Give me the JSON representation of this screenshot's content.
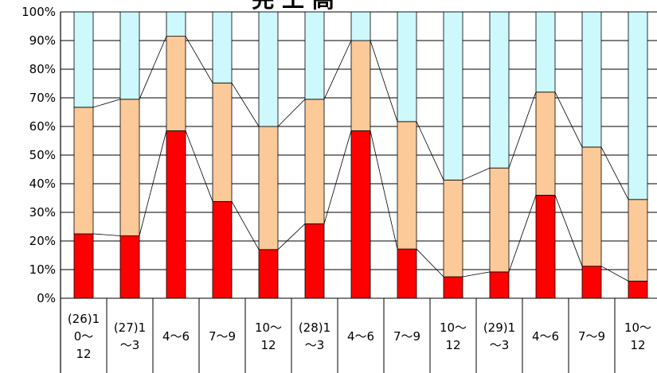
{
  "chart_data": {
    "type": "bar",
    "stacked": true,
    "normalized": true,
    "title": "完 工 高",
    "categories": [
      [
        "(26)1",
        "0～",
        "12"
      ],
      [
        "(27)1",
        "～3"
      ],
      [
        "4～6"
      ],
      [
        "7～9"
      ],
      [
        "10～",
        "12"
      ],
      [
        "(28)1",
        "～3"
      ],
      [
        "4～6"
      ],
      [
        "7～9"
      ],
      [
        "10～",
        "12"
      ],
      [
        "(29)1",
        "～3"
      ],
      [
        "4～6"
      ],
      [
        "7～9"
      ],
      [
        "10～",
        "12"
      ]
    ],
    "series": [
      {
        "color": "#ff0000",
        "values": [
          22.5,
          21.8,
          58.5,
          33.8,
          17.0,
          26.0,
          58.5,
          17.2,
          7.5,
          9.2,
          36.0,
          11.2,
          6.0
        ]
      },
      {
        "color": "#fcc998",
        "values": [
          44.2,
          47.7,
          33.0,
          41.4,
          43.0,
          43.5,
          31.5,
          44.5,
          33.8,
          36.3,
          36.0,
          41.6,
          28.5
        ]
      },
      {
        "color": "#cdf8fc",
        "values": [
          33.3,
          30.5,
          8.5,
          24.8,
          40.0,
          30.5,
          10.0,
          38.3,
          58.7,
          54.5,
          28.0,
          47.2,
          65.5
        ]
      }
    ],
    "ylim": [
      0,
      100
    ],
    "yticks": [
      "0%",
      "10%",
      "20%",
      "30%",
      "40%",
      "50%",
      "60%",
      "70%",
      "80%",
      "90%",
      "100%"
    ],
    "grid": true,
    "connector_lines": true
  }
}
